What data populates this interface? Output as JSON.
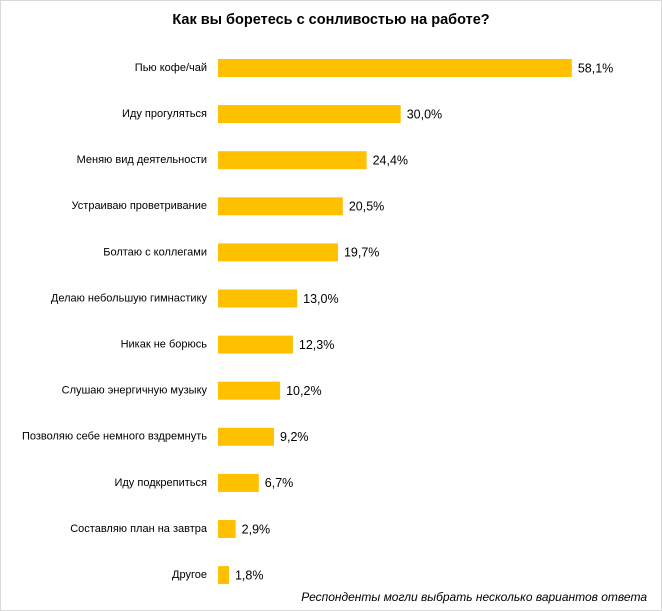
{
  "chart_data": {
    "type": "bar",
    "orientation": "horizontal",
    "title": "Как вы боретесь с сонливостью на работе?",
    "note": "Респонденты могли выбрать несколько вариантов ответа",
    "categories": [
      "Пью кофе/чай",
      "Иду прогуляться",
      "Меняю вид деятельности",
      "Устраиваю проветривание",
      "Болтаю с коллегами",
      "Делаю небольшую гимнастику",
      "Никак не борюсь",
      "Слушаю энергичную музыку",
      "Позволяю себе немного вздремнуть",
      "Иду подкрепиться",
      "Составляю план на завтра",
      "Другое"
    ],
    "values": [
      58.1,
      30.0,
      24.4,
      20.5,
      19.7,
      13.0,
      12.3,
      10.2,
      9.2,
      6.7,
      2.9,
      1.8
    ],
    "value_labels": [
      "58,1%",
      "30,0%",
      "24,4%",
      "20,5%",
      "19,7%",
      "13,0%",
      "12,3%",
      "10,2%",
      "9,2%",
      "6,7%",
      "2,9%",
      "1,8%"
    ],
    "color": "#ffc000"
  }
}
